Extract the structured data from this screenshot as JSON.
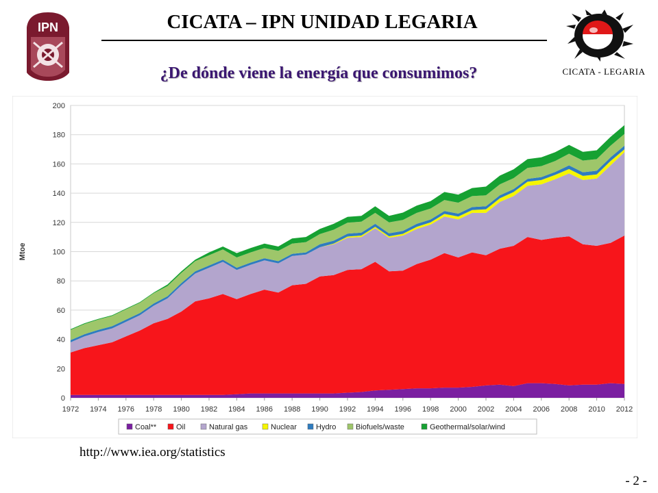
{
  "header": {
    "title": "CICATA – IPN UNIDAD LEGARIA",
    "subtitle": "¿De dónde viene la energía que consumimos?",
    "left_logo_text": "IPN",
    "right_logo_caption": "CICATA - LEGARIA"
  },
  "footer": {
    "source_url": "http://www.iea.org/statistics",
    "page_number": "- 2 -"
  },
  "colors": {
    "coal": "#7a1fa0",
    "oil": "#f7151b",
    "natural_gas": "#b3a5cd",
    "nuclear": "#f5f500",
    "hydro": "#2f7cbf",
    "biofuels": "#9ec66a",
    "geothermal": "#16a132",
    "subtitle": "#3a1670",
    "logo_maroon": "#7a1a2e"
  },
  "chart_data": {
    "type": "area",
    "stacked": true,
    "title": "",
    "xlabel": "",
    "ylabel": "Mtoe",
    "ylim": [
      0,
      200
    ],
    "yticks": [
      0,
      20,
      40,
      60,
      80,
      100,
      120,
      140,
      160,
      180,
      200
    ],
    "grid": true,
    "legend_position": "bottom",
    "x": [
      1972,
      1973,
      1974,
      1975,
      1976,
      1977,
      1978,
      1979,
      1980,
      1981,
      1982,
      1983,
      1984,
      1985,
      1986,
      1987,
      1988,
      1989,
      1990,
      1991,
      1992,
      1993,
      1994,
      1995,
      1996,
      1997,
      1998,
      1999,
      2000,
      2001,
      2002,
      2003,
      2004,
      2005,
      2006,
      2007,
      2008,
      2009,
      2010,
      2011,
      2012
    ],
    "xtick_labels": [
      "1972",
      "1974",
      "1976",
      "1978",
      "1980",
      "1982",
      "1984",
      "1986",
      "1988",
      "1990",
      "1992",
      "1994",
      "1996",
      "1998",
      "2000",
      "2002",
      "2004",
      "2006",
      "2008",
      "2010",
      "2012"
    ],
    "series": [
      {
        "name": "Coal**",
        "color": "#7a1fa0",
        "values": [
          2,
          2,
          2,
          2,
          2,
          2,
          2,
          2,
          2,
          2,
          2,
          2,
          2.5,
          3,
          3,
          3,
          3,
          3,
          3,
          3,
          3.5,
          4,
          5,
          5.5,
          6,
          6.5,
          6.5,
          7,
          7,
          7.5,
          8.5,
          9,
          8,
          10,
          10,
          9.5,
          8.5,
          9,
          9,
          10,
          9.5
        ]
      },
      {
        "name": "Oil",
        "color": "#f7151b",
        "values": [
          29,
          32,
          34,
          36,
          40,
          44,
          49,
          52,
          57,
          64,
          66,
          69,
          65,
          68,
          71,
          69,
          74,
          75,
          80,
          81,
          84,
          84,
          88,
          81,
          81,
          85,
          88,
          92,
          89,
          92,
          89,
          93,
          96,
          100,
          98,
          100,
          102,
          96,
          95,
          96,
          101.5
        ]
      },
      {
        "name": "Natural gas",
        "color": "#b3a5cd",
        "values": [
          7,
          8,
          9,
          9.5,
          10,
          10.5,
          12,
          14,
          18,
          19,
          21,
          22,
          20,
          20,
          20,
          20,
          20,
          20,
          20,
          21,
          22,
          22,
          23,
          23,
          24,
          24,
          24,
          25,
          26,
          27,
          29,
          32,
          34,
          35,
          38,
          40,
          43,
          44,
          46,
          53,
          57
        ]
      },
      {
        "name": "Nuclear",
        "color": "#f5f500",
        "values": [
          0,
          0,
          0,
          0,
          0,
          0,
          0,
          0,
          0,
          0,
          0,
          0,
          0,
          0,
          0,
          0,
          0,
          0,
          0,
          0.5,
          0.8,
          1,
          1,
          1,
          1.2,
          1.5,
          1.5,
          1.8,
          2,
          2,
          2.5,
          2.5,
          2.8,
          2.8,
          3,
          3,
          3,
          2.8,
          2.8,
          3,
          2
        ]
      },
      {
        "name": "Hydro",
        "color": "#2f7cbf",
        "values": [
          1.5,
          1.5,
          1.5,
          1.5,
          1.5,
          1.5,
          1.5,
          1.5,
          1.5,
          1.5,
          1.5,
          1.5,
          1.5,
          1.5,
          1.5,
          1.5,
          1.5,
          1.5,
          2,
          2,
          2,
          2,
          2,
          2,
          2,
          2,
          2,
          2,
          2,
          2,
          2,
          2,
          2,
          2,
          2,
          2,
          2.5,
          2.5,
          2.5,
          2.5,
          2.5
        ]
      },
      {
        "name": "Biofuels/waste",
        "color": "#9ec66a",
        "values": [
          7,
          7,
          7,
          7,
          7,
          7,
          7,
          7,
          7,
          7,
          7,
          7,
          7,
          7,
          7,
          7,
          7,
          7,
          7,
          7.5,
          7.5,
          7.5,
          7.5,
          7.5,
          7.5,
          7.5,
          7.5,
          7.5,
          7.5,
          7.5,
          7.5,
          7.5,
          7.5,
          7.5,
          7.5,
          7.5,
          8,
          8,
          8,
          8,
          8
        ]
      },
      {
        "name": "Geothermal/solar/wind",
        "color": "#16a132",
        "values": [
          0.5,
          0.5,
          0.5,
          0.5,
          0.5,
          0.5,
          0.5,
          1,
          1,
          1,
          2,
          2,
          3,
          3,
          3,
          3,
          3.5,
          3.5,
          3.5,
          4,
          4,
          4,
          4.5,
          4.5,
          5,
          5,
          5,
          5.5,
          5.5,
          5.5,
          6,
          6,
          6,
          6,
          6,
          6,
          6,
          6,
          6,
          6,
          6
        ]
      }
    ]
  }
}
